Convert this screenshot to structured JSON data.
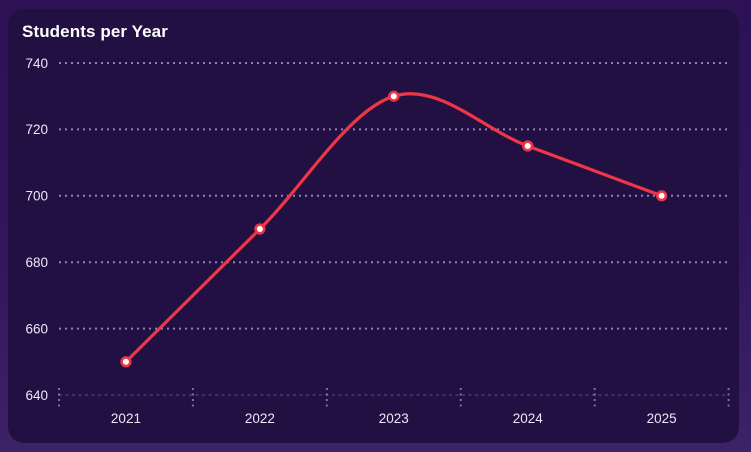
{
  "chart_data": {
    "type": "line",
    "title": "Students per Year",
    "categories": [
      "2021",
      "2022",
      "2023",
      "2024",
      "2025"
    ],
    "series": [
      {
        "name": "Students",
        "values": [
          650,
          690,
          730,
          715,
          700
        ]
      }
    ],
    "xlabel": "",
    "ylabel": "",
    "ylim": [
      640,
      740
    ],
    "yticks": [
      640,
      660,
      680,
      700,
      720,
      740
    ],
    "grid": "horizontal-dotted",
    "legend_position": "none",
    "smooth": true,
    "colors": {
      "line": "#ee3746",
      "point_fill": "#ffffff",
      "grid_dots": "#b9b1e0",
      "baseline": "#8274b5",
      "axis_label": "#ebe7f8",
      "title": "#ffffff",
      "card_background": "#231043",
      "page_background": "#31175a"
    }
  }
}
